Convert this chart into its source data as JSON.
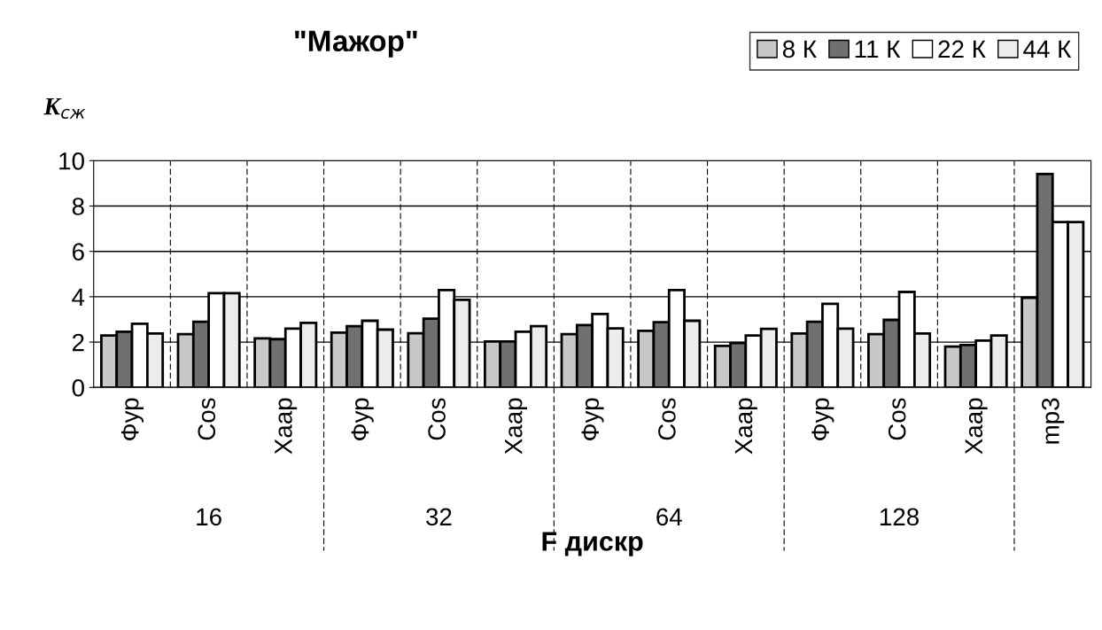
{
  "chart_data": {
    "type": "bar",
    "title": "\"Мажор\"",
    "ylabel": "K$_{сж}$",
    "xlabel": "F дискр",
    "categories": [
      "Фур",
      "Cos",
      "Хаар",
      "Фур",
      "Cos",
      "Хаар",
      "Фур",
      "Cos",
      "Хаар",
      "Фур",
      "Cos",
      "Хаар",
      "mp3"
    ],
    "series": [
      {
        "name": "8 К",
        "color": "#c8c8c8",
        "values": [
          2.29,
          2.35,
          2.16,
          2.42,
          2.39,
          2.03,
          2.35,
          2.5,
          1.83,
          2.38,
          2.35,
          1.8,
          3.95
        ]
      },
      {
        "name": "11 К",
        "color": "#707070",
        "values": [
          2.46,
          2.9,
          2.13,
          2.7,
          3.03,
          2.03,
          2.75,
          2.88,
          1.96,
          2.9,
          2.98,
          1.87,
          9.41
        ]
      },
      {
        "name": "22 К",
        "color": "#ffffff",
        "values": [
          2.81,
          4.16,
          2.59,
          2.94,
          4.29,
          2.46,
          3.24,
          4.29,
          2.29,
          3.69,
          4.21,
          2.07,
          7.29
        ]
      },
      {
        "name": "44 К",
        "color": "#ececec",
        "values": [
          2.38,
          4.16,
          2.85,
          2.55,
          3.86,
          2.7,
          2.6,
          2.94,
          2.58,
          2.59,
          2.38,
          2.29,
          7.29
        ]
      }
    ],
    "annotations": [
      "16",
      "32",
      "64",
      "128"
    ],
    "ylim": [
      0,
      10
    ],
    "yticks": [
      0,
      2,
      4,
      6,
      8,
      10
    ],
    "grid": true,
    "legend": "top right"
  }
}
